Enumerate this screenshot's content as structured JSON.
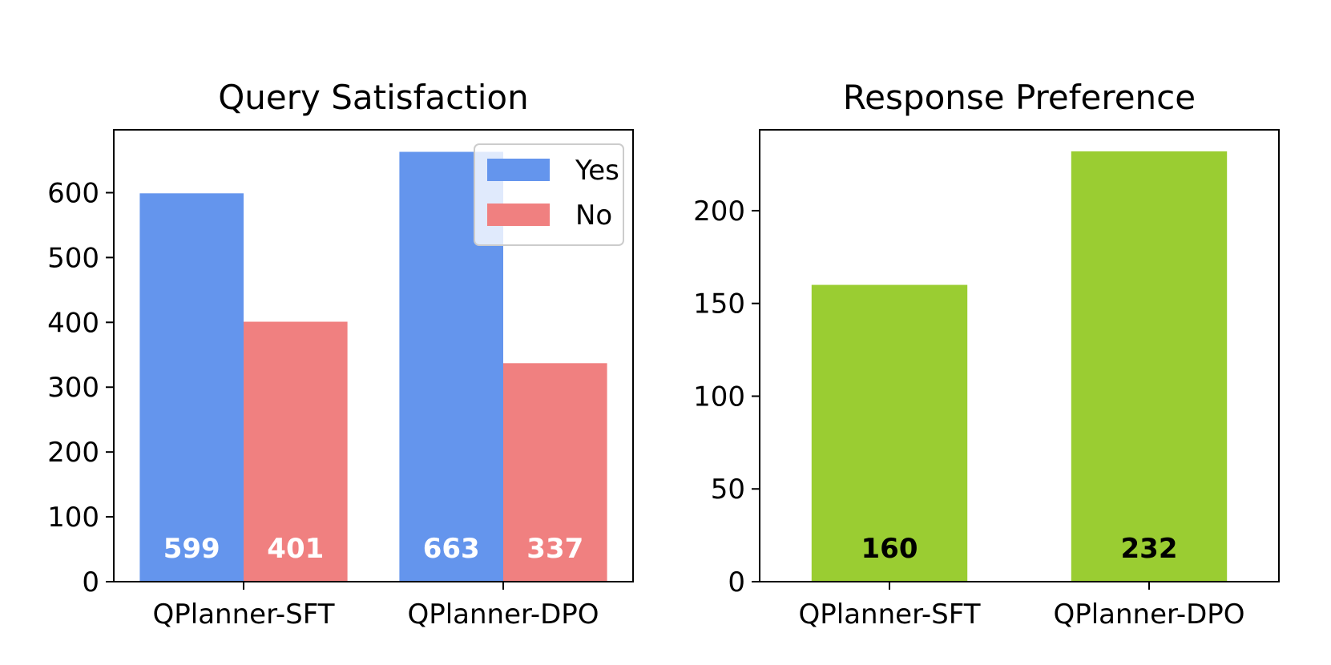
{
  "chart_data": [
    {
      "type": "bar",
      "title": "Query Satisfaction",
      "xlabel": "",
      "ylabel": "",
      "categories": [
        "QPlanner-SFT",
        "QPlanner-DPO"
      ],
      "series": [
        {
          "name": "Yes",
          "values": [
            599,
            663
          ],
          "color": "#6495ED",
          "label_color": "#ffffff"
        },
        {
          "name": "No",
          "values": [
            401,
            337
          ],
          "color": "#F08080",
          "label_color": "#ffffff"
        }
      ],
      "ylim": [
        0,
        697
      ],
      "yticks": [
        0,
        100,
        200,
        300,
        400,
        500,
        600
      ],
      "grid": false,
      "legend": "top-right"
    },
    {
      "type": "bar",
      "title": "Response Preference",
      "xlabel": "",
      "ylabel": "",
      "categories": [
        "QPlanner-SFT",
        "QPlanner-DPO"
      ],
      "series": [
        {
          "values": [
            160,
            232
          ],
          "color": "#9ACD32",
          "label_color": "#000000"
        }
      ],
      "ylim": [
        0,
        243.6
      ],
      "yticks": [
        0,
        50,
        100,
        150,
        200
      ],
      "grid": false,
      "legend": "none"
    }
  ]
}
